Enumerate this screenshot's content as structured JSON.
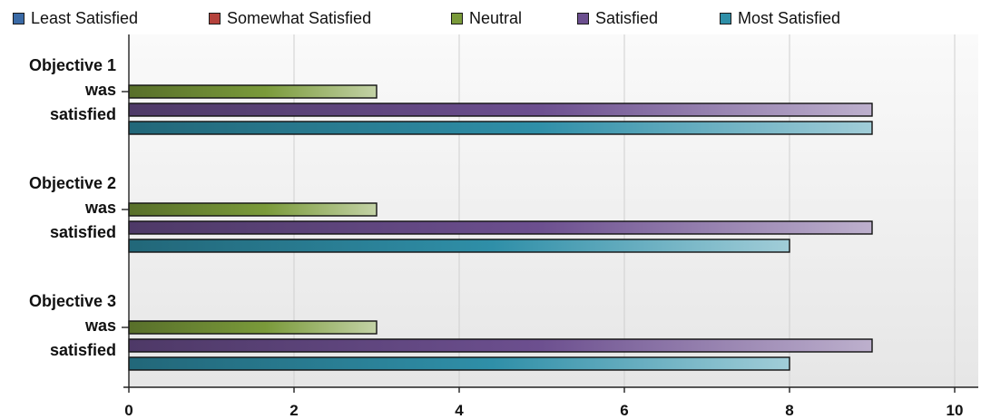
{
  "chart_data": {
    "type": "bar",
    "orientation": "horizontal",
    "categories": [
      [
        "Objective 1",
        "was",
        "satisfied"
      ],
      [
        "Objective 2",
        "was",
        "satisfied"
      ],
      [
        "Objective 3",
        "was",
        "satisfied"
      ]
    ],
    "series": [
      {
        "name": "Least Satisfied",
        "color": "#3a6aa6",
        "values": [
          0,
          0,
          0
        ]
      },
      {
        "name": "Somewhat Satisfied",
        "color": "#b5423c",
        "values": [
          0,
          0,
          0
        ]
      },
      {
        "name": "Neutral",
        "color": "#7a9a3a",
        "values": [
          3,
          3,
          3
        ]
      },
      {
        "name": "Satisfied",
        "color": "#6c4f8f",
        "values": [
          9,
          9,
          9
        ]
      },
      {
        "name": "Most Satisfied",
        "color": "#2f8fa8",
        "values": [
          9,
          8,
          8
        ]
      }
    ],
    "xlim": [
      0,
      10
    ],
    "xticks": [
      "0",
      "2",
      "4",
      "6",
      "8",
      "10"
    ],
    "grid": true,
    "legend_position": "top"
  }
}
